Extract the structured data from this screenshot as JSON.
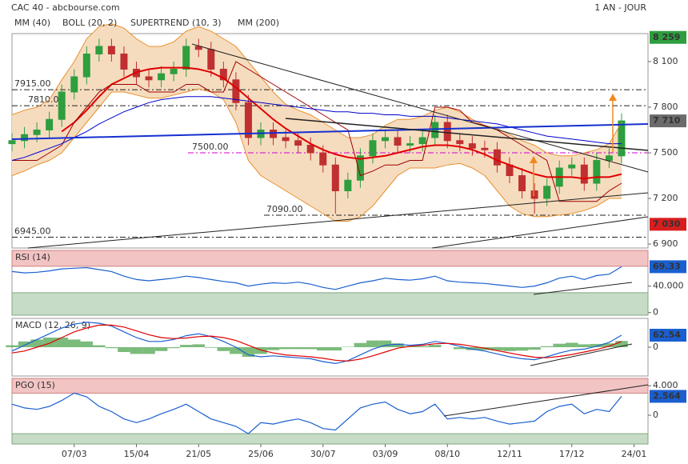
{
  "header": {
    "title": "CAC 40 - abcbourse.com",
    "period": "1 AN - JOUR"
  },
  "chart_data": [
    {
      "type": "candlestick",
      "ylim": [
        6874,
        8284
      ],
      "yticks": [
        {
          "value": 8100,
          "label": "8 100"
        },
        {
          "value": 7800,
          "label": "7 800"
        },
        {
          "value": 7500,
          "label": "7 500"
        },
        {
          "value": 7200,
          "label": "7 200"
        },
        {
          "value": 6900,
          "label": "6 900"
        }
      ],
      "ohlc": {
        "open": [
          7560,
          7580,
          7620,
          7650,
          7720,
          7900,
          8000,
          8150,
          8200,
          8150,
          8050,
          8000,
          7980,
          8020,
          8050,
          8200,
          8180,
          8050,
          7980,
          7830,
          7600,
          7650,
          7600,
          7580,
          7550,
          7500,
          7420,
          7250,
          7320,
          7480,
          7580,
          7600,
          7550,
          7560,
          7600,
          7700,
          7580,
          7560,
          7530,
          7520,
          7420,
          7350,
          7250,
          7200,
          7280,
          7400,
          7420,
          7300,
          7450,
          7480,
          null
        ],
        "high": [
          7630,
          7670,
          7700,
          7770,
          7950,
          8050,
          8200,
          8250,
          8250,
          8200,
          8100,
          8050,
          8070,
          8100,
          8250,
          8250,
          8230,
          8100,
          8030,
          7880,
          7700,
          7700,
          7650,
          7630,
          7600,
          7550,
          7470,
          7370,
          7530,
          7630,
          7650,
          7650,
          7610,
          7650,
          7750,
          7750,
          7630,
          7610,
          7580,
          7570,
          7470,
          7400,
          7300,
          7330,
          7450,
          7470,
          7470,
          7500,
          7530,
          7760,
          null
        ],
        "low": [
          7510,
          7530,
          7570,
          7600,
          7670,
          7850,
          7950,
          8100,
          8100,
          8000,
          7950,
          7930,
          7930,
          7970,
          8000,
          8130,
          8000,
          7930,
          7780,
          7550,
          7550,
          7550,
          7530,
          7500,
          7450,
          7370,
          7100,
          7200,
          7270,
          7430,
          7530,
          7500,
          7500,
          7510,
          7550,
          7530,
          7510,
          7480,
          7470,
          7370,
          7300,
          7200,
          7100,
          7150,
          7230,
          7350,
          7250,
          7250,
          7400,
          7430,
          null
        ],
        "close": [
          7580,
          7620,
          7650,
          7720,
          7900,
          8000,
          8150,
          8200,
          8150,
          8050,
          8000,
          7980,
          8020,
          8050,
          8200,
          8180,
          8050,
          7980,
          7830,
          7600,
          7650,
          7600,
          7580,
          7550,
          7500,
          7420,
          7250,
          7320,
          7480,
          7580,
          7600,
          7550,
          7560,
          7600,
          7700,
          7580,
          7560,
          7530,
          7520,
          7420,
          7350,
          7250,
          7200,
          7280,
          7400,
          7420,
          7300,
          7450,
          7480,
          7710,
          null
        ],
        "up_color": "#2e9e3e",
        "down_color": "#c03030"
      },
      "series": [
        {
          "name": "MM (40)",
          "color": "#e00000",
          "values": [
            null,
            null,
            null,
            null,
            7640,
            7700,
            7780,
            7870,
            7950,
            7990,
            8030,
            8050,
            8060,
            8060,
            8060,
            8050,
            8030,
            7990,
            7930,
            7860,
            7790,
            7720,
            7660,
            7610,
            7560,
            7520,
            7490,
            7470,
            7460,
            7470,
            7480,
            7500,
            7520,
            7540,
            7550,
            7550,
            7540,
            7520,
            7490,
            7450,
            7420,
            7390,
            7360,
            7340,
            7340,
            7340,
            7330,
            7340,
            7340,
            7360,
            null
          ]
        },
        {
          "name": "BOLL (20, 2)",
          "color": "#e8902e",
          "fill": "#f6dcbf",
          "upper": [
            7750,
            7780,
            7800,
            7850,
            7980,
            8100,
            8250,
            8330,
            8350,
            8320,
            8250,
            8200,
            8200,
            8230,
            8300,
            8330,
            8300,
            8250,
            8200,
            8100,
            8000,
            7900,
            7820,
            7780,
            7750,
            7700,
            7650,
            7600,
            7600,
            7620,
            7680,
            7720,
            7720,
            7740,
            7780,
            7800,
            7770,
            7720,
            7680,
            7660,
            7620,
            7580,
            7550,
            7500,
            7480,
            7480,
            7500,
            7520,
            7560,
            7700,
            null
          ],
          "lower": [
            7350,
            7380,
            7420,
            7450,
            7500,
            7600,
            7700,
            7800,
            7900,
            7900,
            7880,
            7860,
            7860,
            7880,
            7900,
            7920,
            7900,
            7850,
            7700,
            7450,
            7350,
            7300,
            7250,
            7200,
            7150,
            7100,
            7050,
            7050,
            7080,
            7150,
            7250,
            7350,
            7400,
            7400,
            7400,
            7420,
            7430,
            7400,
            7350,
            7250,
            7150,
            7100,
            7080,
            7080,
            7090,
            7100,
            7120,
            7150,
            7200,
            7200,
            null
          ]
        },
        {
          "name": "SUPERTREND (10, 3)",
          "color": "#a00000",
          "values": [
            7450,
            7450,
            7450,
            7500,
            7550,
            7700,
            7800,
            7900,
            7950,
            7950,
            7950,
            7900,
            7900,
            7900,
            7950,
            7950,
            7900,
            7900,
            8100,
            8050,
            8000,
            7950,
            7900,
            7850,
            7800,
            7750,
            7700,
            7650,
            7350,
            7380,
            7420,
            7420,
            7450,
            7450,
            7800,
            7800,
            7780,
            7700,
            7680,
            7650,
            7600,
            7550,
            7500,
            7450,
            7180,
            7180,
            7180,
            7180,
            7250,
            7300,
            null
          ]
        },
        {
          "name": "MM (200)",
          "color": "#0000c8",
          "values": [
            7450,
            7470,
            7500,
            7530,
            7560,
            7600,
            7640,
            7690,
            7730,
            7770,
            7800,
            7830,
            7850,
            7860,
            7870,
            7870,
            7870,
            7860,
            7850,
            7840,
            7830,
            7820,
            7810,
            7800,
            7790,
            7780,
            7770,
            7770,
            7760,
            7760,
            7750,
            7750,
            7740,
            7740,
            7740,
            7730,
            7720,
            7710,
            7700,
            7690,
            7670,
            7650,
            7630,
            7610,
            7600,
            7590,
            7580,
            7570,
            7560,
            7560,
            null
          ]
        }
      ],
      "levels": [
        {
          "value": 7915,
          "label": "7915.00"
        },
        {
          "value": 7810,
          "label": "7810.00"
        },
        {
          "value": 7500,
          "label": "7500.00",
          "color": "#d000d0"
        },
        {
          "value": 7090,
          "label": "7090.00"
        },
        {
          "value": 6945,
          "label": "6945.00"
        }
      ],
      "markers": [
        {
          "value": 8259,
          "label": "8 259",
          "color": "#2e9e3e"
        },
        {
          "value": 7710,
          "label": "7 710",
          "color": "#6b6b6b"
        },
        {
          "value": 7030,
          "label": "7 030",
          "color": "#d81e1e"
        }
      ]
    },
    {
      "type": "line",
      "title": "RSI (14)",
      "ylim": [
        -4,
        94
      ],
      "yticks": [
        {
          "value": 40,
          "label": "40.000"
        },
        0
      ],
      "zones": {
        "high": 70,
        "low": 30
      },
      "series": [
        {
          "color": "#1a5fd0",
          "values": [
            62,
            60,
            61,
            63,
            66,
            67,
            68,
            65,
            62,
            55,
            50,
            48,
            50,
            52,
            55,
            53,
            50,
            47,
            45,
            40,
            43,
            45,
            44,
            46,
            43,
            38,
            35,
            40,
            45,
            48,
            52,
            50,
            49,
            51,
            55,
            48,
            46,
            45,
            44,
            42,
            40,
            38,
            40,
            45,
            52,
            55,
            50,
            56,
            58,
            69.33,
            null
          ]
        }
      ],
      "marker": 69.33
    },
    {
      "type": "macd",
      "title": "MACD (12, 26, 9)",
      "ylim": [
        -150,
        150
      ],
      "yticks": [
        0
      ],
      "histogram": {
        "color": "#5aaa5a",
        "values": [
          10,
          30,
          40,
          50,
          50,
          40,
          30,
          10,
          -5,
          -25,
          -35,
          -35,
          -20,
          -5,
          12,
          15,
          -3,
          -20,
          -35,
          -50,
          -35,
          -15,
          -10,
          -10,
          -10,
          -17,
          -17,
          2,
          22,
          35,
          35,
          20,
          5,
          5,
          12,
          0,
          -10,
          -15,
          -15,
          -17,
          -20,
          -18,
          -13,
          5,
          18,
          23,
          15,
          17,
          20,
          32.54,
          null
        ]
      },
      "series": [
        {
          "color": "#1a5fd0",
          "values": [
            -20,
            10,
            40,
            70,
            100,
            120,
            130,
            125,
            110,
            80,
            50,
            30,
            30,
            40,
            60,
            70,
            55,
            30,
            0,
            -40,
            -50,
            -45,
            -50,
            -55,
            -60,
            -75,
            -85,
            -70,
            -40,
            -10,
            10,
            15,
            10,
            15,
            30,
            20,
            5,
            -10,
            -20,
            -35,
            -50,
            -60,
            -65,
            -50,
            -30,
            -15,
            -10,
            5,
            25,
            62.54,
            null
          ]
        },
        {
          "color": "#e00000",
          "values": [
            -30,
            -20,
            0,
            20,
            50,
            80,
            100,
            115,
            115,
            105,
            85,
            65,
            50,
            45,
            48,
            55,
            58,
            50,
            35,
            10,
            -15,
            -30,
            -40,
            -45,
            -50,
            -58,
            -68,
            -72,
            -62,
            -45,
            -25,
            -5,
            5,
            10,
            18,
            20,
            15,
            5,
            -5,
            -18,
            -30,
            -42,
            -52,
            -55,
            -48,
            -38,
            -25,
            -12,
            5,
            30,
            null
          ]
        }
      ],
      "marker": 62.54
    },
    {
      "type": "line",
      "title": "PGO (15)",
      "ylim": [
        -3.9,
        5
      ],
      "yticks": [
        {
          "value": 4,
          "label": "4.000"
        },
        0
      ],
      "zones": {
        "high": 3,
        "low": -2.5
      },
      "series": [
        {
          "color": "#1a5fd0",
          "values": [
            1.5,
            1.0,
            0.8,
            1.2,
            2.0,
            3.0,
            2.5,
            1.2,
            0.5,
            -0.5,
            -1.0,
            -0.5,
            0.2,
            0.8,
            1.5,
            0.5,
            -0.5,
            -1.0,
            -1.5,
            -2.5,
            -1.0,
            -1.2,
            -0.8,
            -0.5,
            -1.0,
            -1.8,
            -2.0,
            -0.5,
            1.0,
            1.5,
            1.8,
            0.8,
            0.2,
            0.5,
            1.5,
            -0.5,
            -0.3,
            -0.5,
            -0.3,
            -0.8,
            -1.2,
            -1.0,
            -0.8,
            0.5,
            1.2,
            1.5,
            0.2,
            0.8,
            0.5,
            2.564,
            null
          ]
        }
      ],
      "marker": 2.564,
      "categories": [
        null,
        null,
        null,
        null,
        null,
        "07/03",
        null,
        null,
        null,
        null,
        "15/04",
        null,
        null,
        null,
        null,
        "21/05",
        null,
        null,
        null,
        null,
        "25/06",
        null,
        null,
        null,
        null,
        "30/07",
        null,
        null,
        null,
        null,
        "03/09",
        null,
        null,
        null,
        null,
        "08/10",
        null,
        null,
        null,
        null,
        "12/11",
        null,
        null,
        null,
        null,
        "17/12",
        null,
        null,
        null,
        null,
        "24/01"
      ]
    }
  ]
}
